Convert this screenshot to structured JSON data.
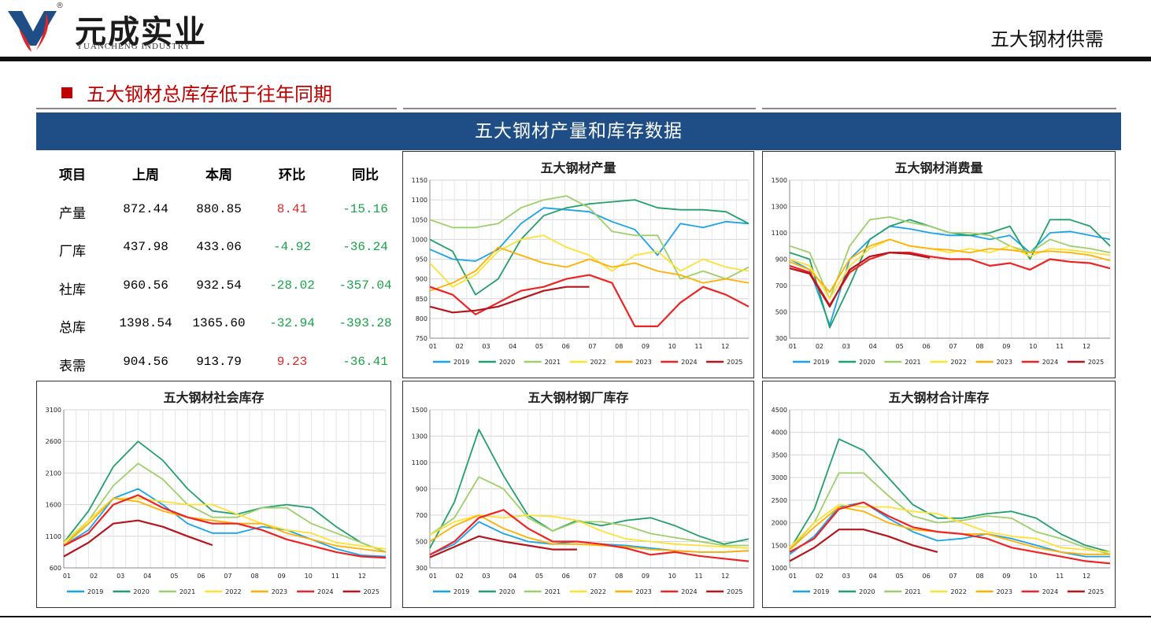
{
  "header": {
    "brand_cn": "元成实业",
    "brand_en": "YUANCHENG INDUSTRY",
    "reg_mark": "®",
    "page_title": "五大钢材供需"
  },
  "section": {
    "title": "五大钢材总库存低于往年同期"
  },
  "banner": {
    "title": "五大钢材产量和库存数据"
  },
  "colors": {
    "banner": "#1f4e86",
    "accent_red": "#c00000",
    "up": "#e0252a",
    "down": "#1aa34a"
  },
  "table": {
    "headers": [
      "项目",
      "上周",
      "本周",
      "环比",
      "同比"
    ],
    "rows": [
      {
        "item": "产量",
        "prev": "872.44",
        "curr": "880.85",
        "wow": "8.41",
        "yoy": "-15.16"
      },
      {
        "item": "厂库",
        "prev": "437.98",
        "curr": "433.06",
        "wow": "-4.92",
        "yoy": "-36.24"
      },
      {
        "item": "社库",
        "prev": "960.56",
        "curr": "932.54",
        "wow": "-28.02",
        "yoy": "-357.04"
      },
      {
        "item": "总库",
        "prev": "1398.54",
        "curr": "1365.60",
        "wow": "-32.94",
        "yoy": "-393.28"
      },
      {
        "item": "表需",
        "prev": "904.56",
        "curr": "913.79",
        "wow": "9.23",
        "yoy": "-36.41"
      }
    ]
  },
  "chart_data": [
    {
      "id": "output",
      "type": "line",
      "title": "五大钢材产量",
      "x_labels": [
        "01",
        "02",
        "03",
        "04",
        "05",
        "06",
        "07",
        "08",
        "09",
        "10",
        "11",
        "12"
      ],
      "ylim": [
        750,
        1150
      ],
      "yticks": [
        750,
        800,
        850,
        900,
        950,
        1000,
        1050,
        1100,
        1150
      ],
      "grid": true,
      "legend": "bottom",
      "series": [
        {
          "name": "2019",
          "color": "#1aa3e8",
          "values": [
            975,
            950,
            945,
            975,
            1040,
            1080,
            1075,
            1070,
            1045,
            1025,
            960,
            1040,
            1030,
            1045,
            1040
          ]
        },
        {
          "name": "2020",
          "color": "#22a06b",
          "values": [
            1000,
            970,
            860,
            900,
            1000,
            1060,
            1080,
            1090,
            1095,
            1100,
            1080,
            1075,
            1075,
            1070,
            1040
          ]
        },
        {
          "name": "2021",
          "color": "#9fcf6a",
          "values": [
            1050,
            1030,
            1030,
            1040,
            1080,
            1100,
            1110,
            1080,
            1020,
            1010,
            1010,
            900,
            920,
            900,
            930
          ]
        },
        {
          "name": "2022",
          "color": "#ffe135",
          "values": [
            940,
            880,
            910,
            970,
            1000,
            1010,
            980,
            960,
            920,
            960,
            970,
            920,
            950,
            930,
            920
          ]
        },
        {
          "name": "2023",
          "color": "#ffb000",
          "values": [
            870,
            890,
            920,
            980,
            960,
            940,
            930,
            950,
            930,
            940,
            920,
            910,
            890,
            900,
            890
          ]
        },
        {
          "name": "2024",
          "color": "#ee2424",
          "values": [
            880,
            860,
            810,
            840,
            870,
            880,
            900,
            910,
            890,
            780,
            780,
            840,
            880,
            860,
            830
          ]
        },
        {
          "name": "2025",
          "color": "#b5151c",
          "values": [
            830,
            815,
            820,
            830,
            850,
            870,
            880,
            880
          ]
        }
      ]
    },
    {
      "id": "consumption",
      "type": "line",
      "title": "五大钢材消费量",
      "x_labels": [
        "01",
        "02",
        "03",
        "04",
        "05",
        "06",
        "07",
        "08",
        "09",
        "10",
        "11",
        "12"
      ],
      "ylim": [
        300,
        1500
      ],
      "yticks": [
        300,
        500,
        700,
        900,
        1100,
        1300,
        1500
      ],
      "grid": true,
      "legend": "bottom",
      "series": [
        {
          "name": "2019",
          "color": "#1aa3e8",
          "values": [
            900,
            820,
            400,
            900,
            1050,
            1150,
            1130,
            1100,
            1080,
            1080,
            1050,
            1080,
            950,
            1100,
            1110,
            1080,
            1050
          ]
        },
        {
          "name": "2020",
          "color": "#22a06b",
          "values": [
            950,
            900,
            380,
            700,
            1050,
            1150,
            1200,
            1150,
            1100,
            1080,
            1100,
            1150,
            900,
            1200,
            1200,
            1150,
            1000
          ]
        },
        {
          "name": "2021",
          "color": "#9fcf6a",
          "values": [
            1000,
            950,
            600,
            1000,
            1200,
            1220,
            1180,
            1150,
            1100,
            1100,
            1080,
            1000,
            950,
            1050,
            1000,
            980,
            950
          ]
        },
        {
          "name": "2022",
          "color": "#ffe135",
          "values": [
            900,
            850,
            600,
            850,
            980,
            1050,
            1000,
            980,
            950,
            980,
            950,
            1000,
            920,
            980,
            970,
            950,
            930
          ]
        },
        {
          "name": "2023",
          "color": "#ffb000",
          "values": [
            880,
            820,
            650,
            900,
            1000,
            1050,
            1000,
            980,
            970,
            950,
            980,
            970,
            950,
            960,
            950,
            930,
            890
          ]
        },
        {
          "name": "2024",
          "color": "#ee2424",
          "values": [
            850,
            800,
            550,
            800,
            900,
            950,
            950,
            920,
            900,
            900,
            850,
            870,
            820,
            900,
            880,
            870,
            830
          ]
        },
        {
          "name": "2025",
          "color": "#b5151c",
          "values": [
            830,
            790,
            540,
            820,
            920,
            950,
            940,
            910
          ]
        }
      ]
    },
    {
      "id": "social_inventory",
      "type": "line",
      "title": "五大钢材社会库存",
      "x_labels": [
        "01",
        "02",
        "03",
        "04",
        "05",
        "06",
        "07",
        "08",
        "09",
        "10",
        "11",
        "12"
      ],
      "ylim": [
        600,
        3100
      ],
      "yticks": [
        600,
        1100,
        1600,
        2100,
        2600,
        3100
      ],
      "grid": true,
      "legend": "bottom",
      "series": [
        {
          "name": "2019",
          "color": "#1aa3e8",
          "values": [
            950,
            1200,
            1700,
            1850,
            1600,
            1300,
            1150,
            1150,
            1250,
            1200,
            1050,
            900,
            800,
            780
          ]
        },
        {
          "name": "2020",
          "color": "#22a06b",
          "values": [
            1000,
            1500,
            2200,
            2600,
            2300,
            1850,
            1500,
            1450,
            1550,
            1600,
            1550,
            1250,
            1000,
            850
          ]
        },
        {
          "name": "2021",
          "color": "#9fcf6a",
          "values": [
            950,
            1350,
            1900,
            2250,
            2000,
            1600,
            1400,
            1400,
            1550,
            1550,
            1300,
            1150,
            1000,
            850
          ]
        },
        {
          "name": "2022",
          "color": "#ffe135",
          "values": [
            1000,
            1350,
            1700,
            1700,
            1650,
            1600,
            1600,
            1450,
            1300,
            1200,
            1150,
            1000,
            950,
            900
          ]
        },
        {
          "name": "2023",
          "color": "#ffb000",
          "values": [
            950,
            1300,
            1700,
            1650,
            1500,
            1400,
            1350,
            1300,
            1300,
            1150,
            1050,
            950,
            900,
            850
          ]
        },
        {
          "name": "2024",
          "color": "#ee2424",
          "values": [
            950,
            1150,
            1600,
            1750,
            1550,
            1400,
            1300,
            1300,
            1200,
            1050,
            950,
            850,
            780,
            760
          ]
        },
        {
          "name": "2025",
          "color": "#b5151c",
          "values": [
            780,
            1000,
            1300,
            1350,
            1250,
            1100,
            960
          ]
        }
      ]
    },
    {
      "id": "mill_inventory",
      "type": "line",
      "title": "五大钢材钢厂库存",
      "x_labels": [
        "01",
        "02",
        "03",
        "04",
        "05",
        "06",
        "07",
        "08",
        "09",
        "10",
        "11",
        "12"
      ],
      "ylim": [
        300,
        1500
      ],
      "yticks": [
        300,
        500,
        700,
        900,
        1100,
        1300,
        1500
      ],
      "grid": true,
      "legend": "bottom",
      "series": [
        {
          "name": "2019",
          "color": "#1aa3e8",
          "values": [
            400,
            480,
            650,
            560,
            500,
            480,
            500,
            480,
            470,
            450,
            430,
            420,
            420,
            430
          ]
        },
        {
          "name": "2020",
          "color": "#22a06b",
          "values": [
            450,
            800,
            1350,
            1000,
            700,
            580,
            660,
            620,
            660,
            680,
            620,
            540,
            480,
            520
          ]
        },
        {
          "name": "2021",
          "color": "#9fcf6a",
          "values": [
            550,
            680,
            990,
            900,
            680,
            580,
            650,
            650,
            620,
            560,
            530,
            500,
            470,
            470
          ]
        },
        {
          "name": "2022",
          "color": "#ffe135",
          "values": [
            550,
            650,
            700,
            680,
            700,
            690,
            660,
            580,
            520,
            500,
            480,
            470,
            460,
            450
          ]
        },
        {
          "name": "2023",
          "color": "#ffb000",
          "values": [
            500,
            620,
            700,
            600,
            530,
            480,
            480,
            470,
            460,
            440,
            430,
            420,
            420,
            430
          ]
        },
        {
          "name": "2024",
          "color": "#ee2424",
          "values": [
            400,
            500,
            680,
            740,
            600,
            500,
            500,
            480,
            450,
            400,
            420,
            390,
            370,
            350
          ]
        },
        {
          "name": "2025",
          "color": "#b5151c",
          "values": [
            380,
            460,
            540,
            500,
            470,
            440,
            440
          ]
        }
      ]
    },
    {
      "id": "total_inventory",
      "type": "line",
      "title": "五大钢材合计库存",
      "x_labels": [
        "01",
        "02",
        "03",
        "04",
        "05",
        "06",
        "07",
        "08",
        "09",
        "10",
        "11",
        "12"
      ],
      "ylim": [
        1000,
        4500
      ],
      "yticks": [
        1000,
        1500,
        2000,
        2500,
        3000,
        3500,
        4000,
        4500
      ],
      "grid": true,
      "legend": "bottom",
      "series": [
        {
          "name": "2019",
          "color": "#1aa3e8",
          "values": [
            1300,
            1700,
            2350,
            2450,
            2100,
            1800,
            1600,
            1650,
            1750,
            1650,
            1500,
            1350,
            1250,
            1250
          ]
        },
        {
          "name": "2020",
          "color": "#22a06b",
          "values": [
            1400,
            2300,
            3850,
            3600,
            3000,
            2400,
            2100,
            2100,
            2200,
            2250,
            2100,
            1750,
            1500,
            1350
          ]
        },
        {
          "name": "2021",
          "color": "#9fcf6a",
          "values": [
            1400,
            2000,
            3100,
            3100,
            2600,
            2150,
            2000,
            2050,
            2150,
            2100,
            1800,
            1650,
            1450,
            1300
          ]
        },
        {
          "name": "2022",
          "color": "#ffe135",
          "values": [
            1450,
            2000,
            2400,
            2350,
            2350,
            2250,
            2200,
            2000,
            1800,
            1700,
            1650,
            1450,
            1400,
            1350
          ]
        },
        {
          "name": "2023",
          "color": "#ffb000",
          "values": [
            1400,
            1900,
            2350,
            2250,
            2000,
            1850,
            1800,
            1750,
            1750,
            1600,
            1450,
            1350,
            1300,
            1300
          ]
        },
        {
          "name": "2024",
          "color": "#ee2424",
          "values": [
            1350,
            1650,
            2300,
            2450,
            2150,
            1900,
            1800,
            1750,
            1650,
            1450,
            1350,
            1250,
            1150,
            1100
          ]
        },
        {
          "name": "2025",
          "color": "#b5151c",
          "values": [
            1150,
            1450,
            1850,
            1850,
            1700,
            1500,
            1350
          ]
        }
      ]
    }
  ]
}
